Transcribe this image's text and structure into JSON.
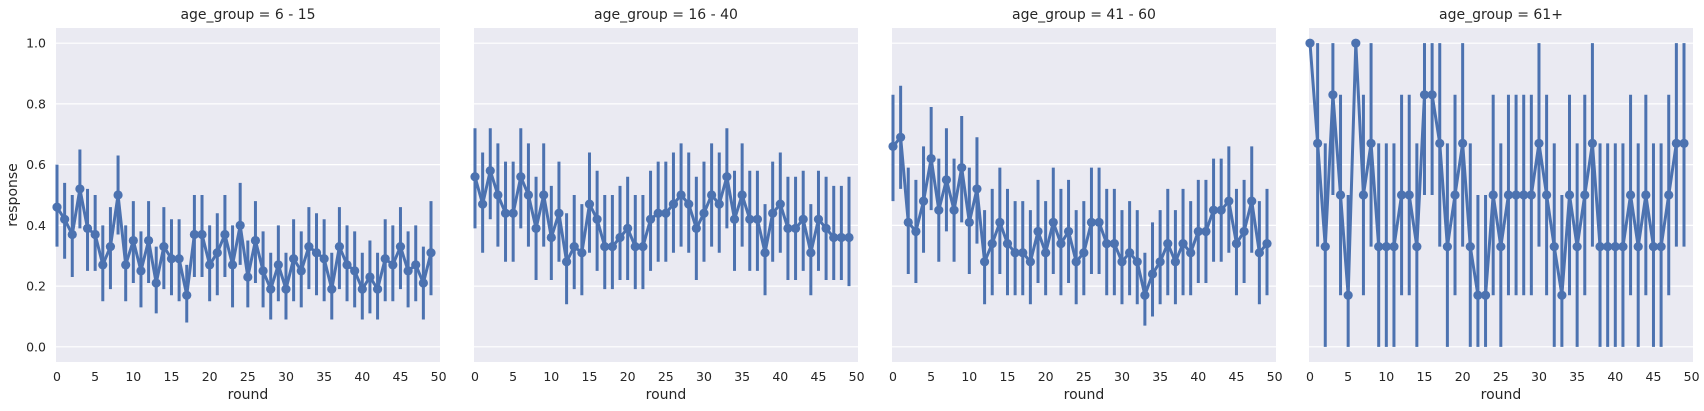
{
  "figure": {
    "ylabel": "response",
    "xlabel": "round",
    "style": {
      "background": "#ffffff",
      "panel_background": "#eaeaf2",
      "grid_color": "#ffffff",
      "series_color": "#4c72b0",
      "text_color": "#262626"
    }
  },
  "chart_data": [
    {
      "type": "line",
      "title": "age_group = 6 - 15",
      "xlabel": "round",
      "ylabel": "response",
      "xlim": [
        0,
        49
      ],
      "ylim": [
        -0.05,
        1.05
      ],
      "x_ticks": [
        0,
        5,
        10,
        15,
        20,
        25,
        30,
        35,
        40,
        45,
        50
      ],
      "y_ticks": [
        0.0,
        0.2,
        0.4,
        0.6,
        0.8,
        1.0
      ],
      "grid": true,
      "x": [
        0,
        1,
        2,
        3,
        4,
        5,
        6,
        7,
        8,
        9,
        10,
        11,
        12,
        13,
        14,
        15,
        16,
        17,
        18,
        19,
        20,
        21,
        22,
        23,
        24,
        25,
        26,
        27,
        28,
        29,
        30,
        31,
        32,
        33,
        34,
        35,
        36,
        37,
        38,
        39,
        40,
        41,
        42,
        43,
        44,
        45,
        46,
        47,
        48,
        49
      ],
      "series": [
        {
          "values": [
            0.46,
            0.42,
            0.37,
            0.52,
            0.39,
            0.37,
            0.27,
            0.33,
            0.5,
            0.27,
            0.35,
            0.25,
            0.35,
            0.21,
            0.33,
            0.29,
            0.29,
            0.17,
            0.37,
            0.37,
            0.27,
            0.31,
            0.37,
            0.27,
            0.4,
            0.23,
            0.35,
            0.25,
            0.19,
            0.27,
            0.19,
            0.29,
            0.25,
            0.33,
            0.31,
            0.29,
            0.19,
            0.33,
            0.27,
            0.25,
            0.19,
            0.23,
            0.19,
            0.29,
            0.27,
            0.33,
            0.25,
            0.27,
            0.21,
            0.31
          ],
          "ci_low": [
            0.33,
            0.29,
            0.23,
            0.39,
            0.25,
            0.25,
            0.15,
            0.19,
            0.37,
            0.15,
            0.21,
            0.13,
            0.21,
            0.11,
            0.19,
            0.17,
            0.15,
            0.08,
            0.23,
            0.23,
            0.15,
            0.17,
            0.23,
            0.13,
            0.27,
            0.13,
            0.21,
            0.13,
            0.09,
            0.15,
            0.09,
            0.15,
            0.13,
            0.19,
            0.17,
            0.15,
            0.09,
            0.19,
            0.15,
            0.13,
            0.09,
            0.11,
            0.09,
            0.15,
            0.15,
            0.19,
            0.13,
            0.15,
            0.09,
            0.17
          ],
          "ci_high": [
            0.6,
            0.54,
            0.5,
            0.65,
            0.52,
            0.5,
            0.4,
            0.46,
            0.63,
            0.4,
            0.48,
            0.38,
            0.48,
            0.33,
            0.46,
            0.42,
            0.42,
            0.27,
            0.5,
            0.5,
            0.4,
            0.44,
            0.5,
            0.4,
            0.54,
            0.35,
            0.48,
            0.38,
            0.31,
            0.4,
            0.31,
            0.42,
            0.38,
            0.46,
            0.44,
            0.42,
            0.31,
            0.46,
            0.4,
            0.38,
            0.31,
            0.35,
            0.31,
            0.42,
            0.4,
            0.46,
            0.38,
            0.4,
            0.33,
            0.48
          ]
        }
      ]
    },
    {
      "type": "line",
      "title": "age_group = 16 - 40",
      "xlabel": "round",
      "ylabel": "",
      "xlim": [
        0,
        49
      ],
      "ylim": [
        -0.05,
        1.05
      ],
      "x_ticks": [
        0,
        5,
        10,
        15,
        20,
        25,
        30,
        35,
        40,
        45,
        50
      ],
      "y_ticks": [
        0.0,
        0.2,
        0.4,
        0.6,
        0.8,
        1.0
      ],
      "grid": true,
      "x": [
        0,
        1,
        2,
        3,
        4,
        5,
        6,
        7,
        8,
        9,
        10,
        11,
        12,
        13,
        14,
        15,
        16,
        17,
        18,
        19,
        20,
        21,
        22,
        23,
        24,
        25,
        26,
        27,
        28,
        29,
        30,
        31,
        32,
        33,
        34,
        35,
        36,
        37,
        38,
        39,
        40,
        41,
        42,
        43,
        44,
        45,
        46,
        47,
        48,
        49
      ],
      "series": [
        {
          "values": [
            0.56,
            0.47,
            0.58,
            0.5,
            0.44,
            0.44,
            0.56,
            0.5,
            0.39,
            0.5,
            0.36,
            0.44,
            0.28,
            0.33,
            0.31,
            0.47,
            0.42,
            0.33,
            0.33,
            0.36,
            0.39,
            0.33,
            0.33,
            0.42,
            0.44,
            0.44,
            0.47,
            0.5,
            0.47,
            0.39,
            0.44,
            0.5,
            0.47,
            0.56,
            0.42,
            0.5,
            0.42,
            0.42,
            0.31,
            0.44,
            0.47,
            0.39,
            0.39,
            0.42,
            0.31,
            0.42,
            0.39,
            0.36,
            0.36,
            0.36
          ],
          "ci_low": [
            0.39,
            0.31,
            0.42,
            0.33,
            0.28,
            0.28,
            0.39,
            0.33,
            0.22,
            0.33,
            0.22,
            0.28,
            0.14,
            0.19,
            0.17,
            0.31,
            0.25,
            0.19,
            0.19,
            0.22,
            0.22,
            0.19,
            0.19,
            0.25,
            0.28,
            0.28,
            0.31,
            0.33,
            0.31,
            0.22,
            0.28,
            0.33,
            0.31,
            0.39,
            0.25,
            0.33,
            0.25,
            0.25,
            0.17,
            0.28,
            0.31,
            0.22,
            0.22,
            0.25,
            0.17,
            0.25,
            0.22,
            0.22,
            0.22,
            0.2
          ],
          "ci_high": [
            0.72,
            0.64,
            0.72,
            0.67,
            0.61,
            0.61,
            0.72,
            0.67,
            0.56,
            0.67,
            0.53,
            0.61,
            0.44,
            0.5,
            0.47,
            0.64,
            0.58,
            0.5,
            0.5,
            0.53,
            0.56,
            0.5,
            0.5,
            0.58,
            0.61,
            0.61,
            0.64,
            0.67,
            0.64,
            0.56,
            0.61,
            0.67,
            0.64,
            0.72,
            0.58,
            0.67,
            0.58,
            0.58,
            0.47,
            0.61,
            0.64,
            0.56,
            0.56,
            0.58,
            0.47,
            0.58,
            0.56,
            0.53,
            0.53,
            0.56
          ]
        }
      ]
    },
    {
      "type": "line",
      "title": "age_group = 41 - 60",
      "xlabel": "round",
      "ylabel": "",
      "xlim": [
        0,
        49
      ],
      "ylim": [
        -0.05,
        1.05
      ],
      "x_ticks": [
        0,
        5,
        10,
        15,
        20,
        25,
        30,
        35,
        40,
        45,
        50
      ],
      "y_ticks": [
        0.0,
        0.2,
        0.4,
        0.6,
        0.8,
        1.0
      ],
      "grid": true,
      "x": [
        0,
        1,
        2,
        3,
        4,
        5,
        6,
        7,
        8,
        9,
        10,
        11,
        12,
        13,
        14,
        15,
        16,
        17,
        18,
        19,
        20,
        21,
        22,
        23,
        24,
        25,
        26,
        27,
        28,
        29,
        30,
        31,
        32,
        33,
        34,
        35,
        36,
        37,
        38,
        39,
        40,
        41,
        42,
        43,
        44,
        45,
        46,
        47,
        48,
        49
      ],
      "series": [
        {
          "values": [
            0.66,
            0.69,
            0.41,
            0.38,
            0.48,
            0.62,
            0.45,
            0.55,
            0.45,
            0.59,
            0.41,
            0.52,
            0.28,
            0.34,
            0.41,
            0.34,
            0.31,
            0.31,
            0.28,
            0.38,
            0.31,
            0.41,
            0.34,
            0.38,
            0.28,
            0.31,
            0.41,
            0.41,
            0.34,
            0.34,
            0.28,
            0.31,
            0.28,
            0.17,
            0.24,
            0.28,
            0.34,
            0.28,
            0.34,
            0.31,
            0.38,
            0.38,
            0.45,
            0.45,
            0.48,
            0.34,
            0.38,
            0.48,
            0.31,
            0.34
          ],
          "ci_low": [
            0.48,
            0.52,
            0.24,
            0.21,
            0.31,
            0.45,
            0.28,
            0.38,
            0.28,
            0.41,
            0.24,
            0.34,
            0.14,
            0.17,
            0.24,
            0.17,
            0.17,
            0.17,
            0.14,
            0.21,
            0.17,
            0.24,
            0.17,
            0.21,
            0.14,
            0.17,
            0.24,
            0.24,
            0.17,
            0.17,
            0.14,
            0.17,
            0.14,
            0.07,
            0.1,
            0.14,
            0.17,
            0.14,
            0.17,
            0.17,
            0.21,
            0.21,
            0.28,
            0.28,
            0.31,
            0.17,
            0.21,
            0.31,
            0.14,
            0.17
          ],
          "ci_high": [
            0.83,
            0.86,
            0.59,
            0.55,
            0.66,
            0.79,
            0.62,
            0.72,
            0.62,
            0.76,
            0.59,
            0.69,
            0.45,
            0.52,
            0.59,
            0.52,
            0.48,
            0.48,
            0.45,
            0.55,
            0.48,
            0.59,
            0.52,
            0.55,
            0.45,
            0.48,
            0.59,
            0.59,
            0.52,
            0.52,
            0.45,
            0.48,
            0.45,
            0.31,
            0.41,
            0.45,
            0.52,
            0.45,
            0.52,
            0.48,
            0.55,
            0.55,
            0.62,
            0.62,
            0.66,
            0.52,
            0.55,
            0.66,
            0.48,
            0.52
          ]
        }
      ]
    },
    {
      "type": "line",
      "title": "age_group = 61+",
      "xlabel": "round",
      "ylabel": "",
      "xlim": [
        0,
        49
      ],
      "ylim": [
        -0.05,
        1.05
      ],
      "x_ticks": [
        0,
        5,
        10,
        15,
        20,
        25,
        30,
        35,
        40,
        45,
        50
      ],
      "y_ticks": [
        0.0,
        0.2,
        0.4,
        0.6,
        0.8,
        1.0
      ],
      "grid": true,
      "x": [
        0,
        1,
        2,
        3,
        4,
        5,
        6,
        7,
        8,
        9,
        10,
        11,
        12,
        13,
        14,
        15,
        16,
        17,
        18,
        19,
        20,
        21,
        22,
        23,
        24,
        25,
        26,
        27,
        28,
        29,
        30,
        31,
        32,
        33,
        34,
        35,
        36,
        37,
        38,
        39,
        40,
        41,
        42,
        43,
        44,
        45,
        46,
        47,
        48,
        49
      ],
      "series": [
        {
          "values": [
            1.0,
            0.67,
            0.33,
            0.83,
            0.5,
            0.17,
            1.0,
            0.5,
            0.67,
            0.33,
            0.33,
            0.33,
            0.5,
            0.5,
            0.33,
            0.83,
            0.83,
            0.67,
            0.33,
            0.5,
            0.67,
            0.33,
            0.17,
            0.17,
            0.5,
            0.33,
            0.5,
            0.5,
            0.5,
            0.5,
            0.67,
            0.5,
            0.33,
            0.17,
            0.5,
            0.33,
            0.5,
            0.67,
            0.33,
            0.33,
            0.33,
            0.33,
            0.5,
            0.33,
            0.5,
            0.33,
            0.33,
            0.5,
            0.67,
            0.67
          ],
          "ci_low": [
            1.0,
            0.33,
            0.0,
            0.5,
            0.17,
            0.0,
            1.0,
            0.17,
            0.33,
            0.0,
            0.0,
            0.0,
            0.17,
            0.17,
            0.0,
            0.5,
            0.5,
            0.33,
            0.0,
            0.17,
            0.33,
            0.0,
            0.0,
            0.0,
            0.17,
            0.0,
            0.17,
            0.17,
            0.17,
            0.17,
            0.33,
            0.17,
            0.0,
            0.0,
            0.17,
            0.0,
            0.17,
            0.33,
            0.0,
            0.0,
            0.0,
            0.0,
            0.17,
            0.0,
            0.17,
            0.0,
            0.0,
            0.17,
            0.33,
            0.33
          ],
          "ci_high": [
            1.0,
            1.0,
            0.67,
            1.0,
            0.83,
            0.5,
            1.0,
            0.83,
            1.0,
            0.67,
            0.67,
            0.67,
            0.83,
            0.83,
            0.67,
            1.0,
            1.0,
            1.0,
            0.67,
            0.83,
            1.0,
            0.67,
            0.5,
            0.5,
            0.83,
            0.67,
            0.83,
            0.83,
            0.83,
            0.83,
            1.0,
            0.83,
            0.67,
            0.5,
            0.83,
            0.67,
            0.83,
            1.0,
            0.67,
            0.67,
            0.67,
            0.67,
            0.83,
            0.67,
            0.83,
            0.67,
            0.67,
            0.83,
            1.0,
            1.0
          ]
        }
      ]
    }
  ]
}
